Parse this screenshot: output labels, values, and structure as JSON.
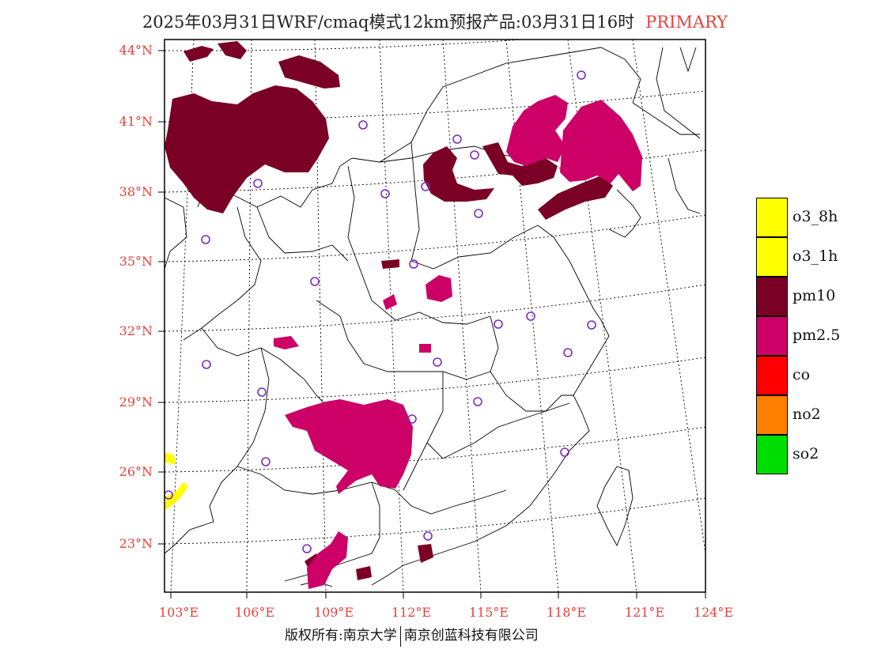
{
  "title": {
    "text": "2025年03月31日WRF/cmaq模式12km预报产品:03月31日16时",
    "tag": "PRIMARY"
  },
  "map": {
    "lat_labels": [
      "44°N",
      "41°N",
      "38°N",
      "35°N",
      "32°N",
      "29°N",
      "26°N",
      "23°N"
    ],
    "lon_labels": [
      "103°E",
      "106°E",
      "109°E",
      "112°E",
      "115°E",
      "118°E",
      "121°E",
      "124°E"
    ]
  },
  "legend": {
    "items": [
      {
        "label": "o3_8h",
        "color": "#ffff00"
      },
      {
        "label": "o3_1h",
        "color": "#ffff00"
      },
      {
        "label": "pm10",
        "color": "#7a0026"
      },
      {
        "label": "pm2.5",
        "color": "#cc0066"
      },
      {
        "label": "co",
        "color": "#ff0000"
      },
      {
        "label": "no2",
        "color": "#ff7f00"
      },
      {
        "label": "so2",
        "color": "#00dd00"
      }
    ]
  },
  "footer": {
    "left": "版权所有:南京大学",
    "right": "南京创蓝科技有限公司"
  },
  "colors": {
    "pm10": "#7a0026",
    "pm25": "#cc0066",
    "o3": "#ffff00",
    "station": "#7b2cbf",
    "axis_label": "#e8413c"
  }
}
